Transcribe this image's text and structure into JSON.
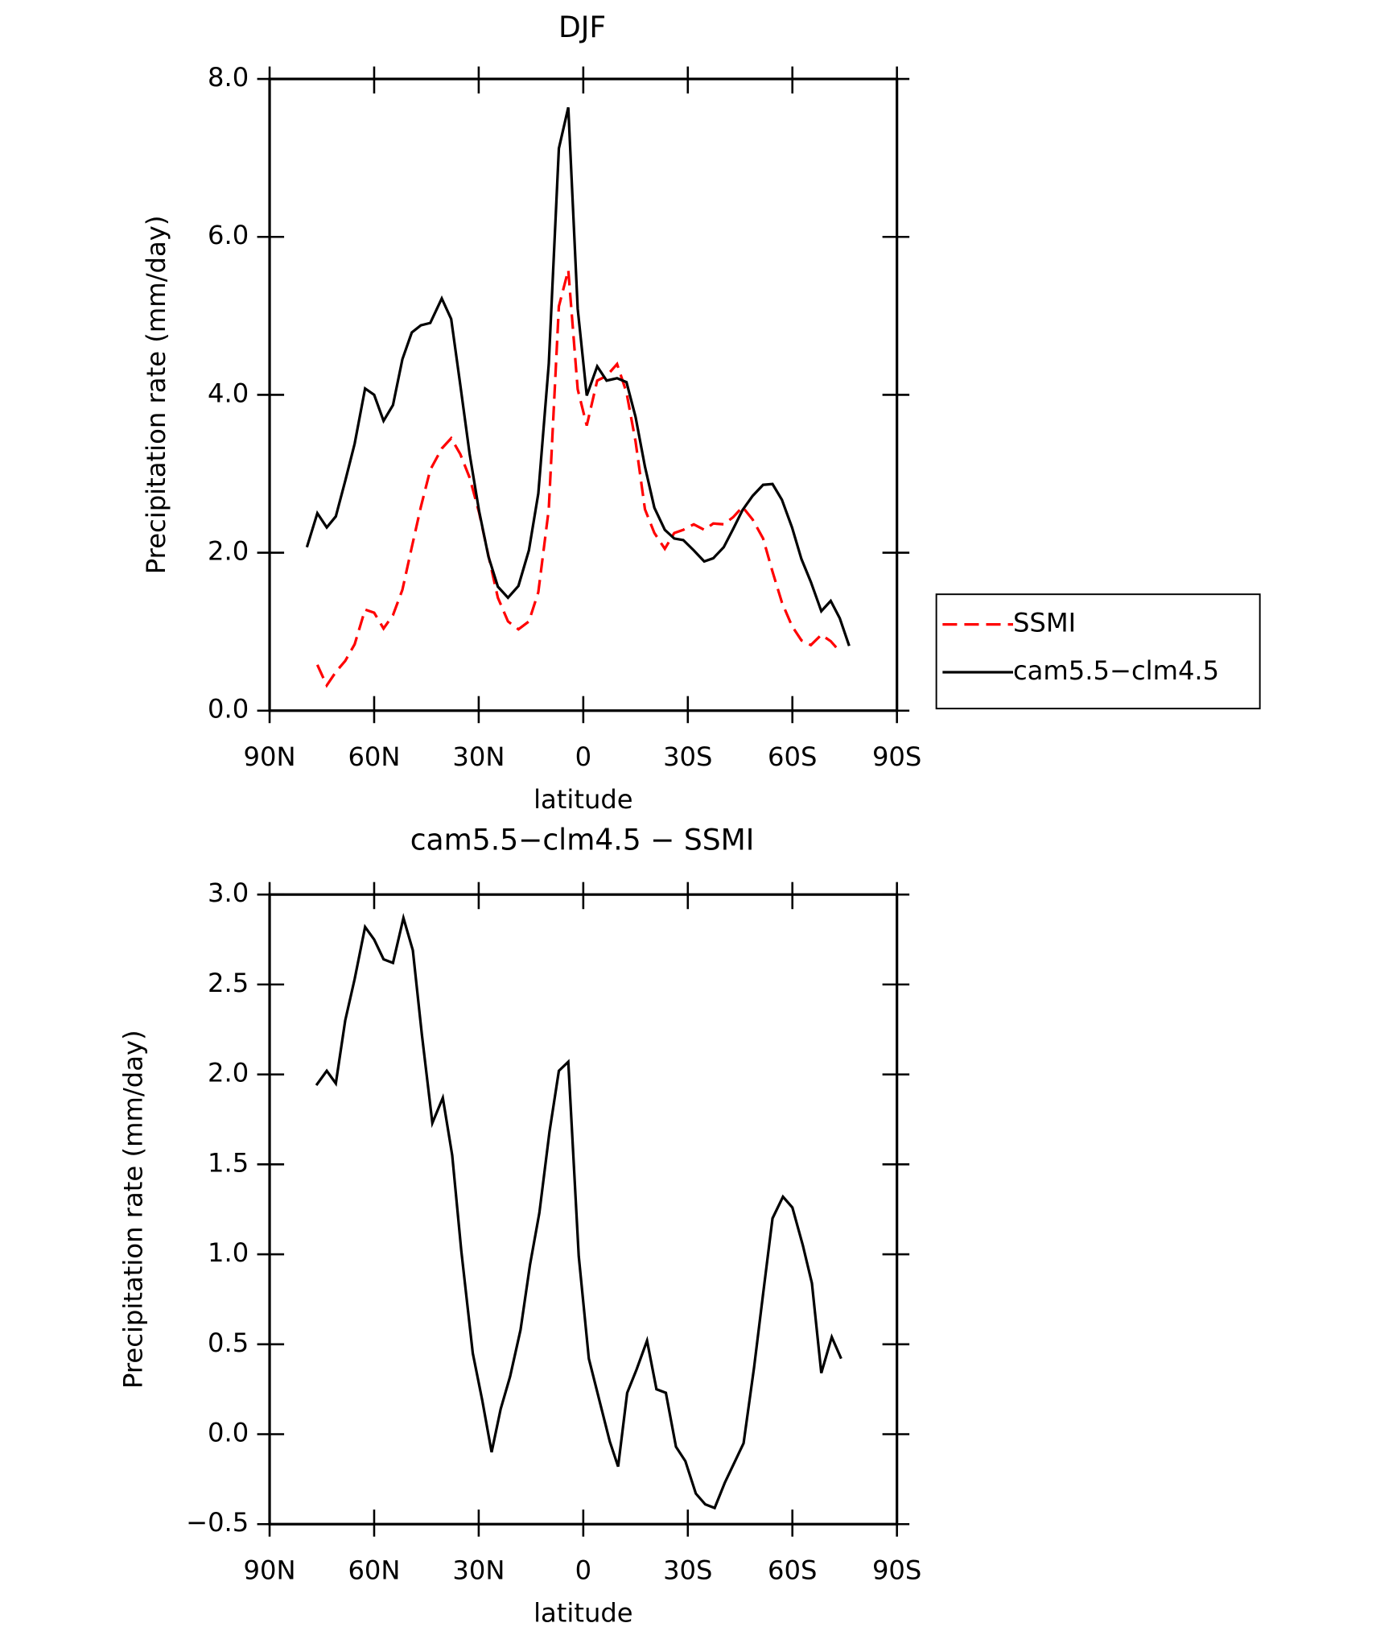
{
  "chart_data": [
    {
      "type": "line",
      "title": "DJF",
      "xlabel": "latitude",
      "ylabel": "Precipitation rate (mm/day)",
      "x": [
        79.3,
        76.3,
        73.6,
        71.0,
        68.3,
        65.6,
        62.6,
        60.0,
        57.3,
        54.6,
        51.9,
        49.2,
        46.6,
        43.9,
        40.6,
        37.9,
        35.3,
        32.6,
        29.9,
        27.2,
        24.5,
        21.6,
        18.6,
        15.6,
        12.9,
        9.9,
        7.0,
        4.3,
        1.6,
        -1.0,
        -4.0,
        -6.7,
        -9.7,
        -12.4,
        -15.0,
        -17.7,
        -20.4,
        -23.4,
        -26.1,
        -28.7,
        -31.7,
        -34.7,
        -37.3,
        -40.3,
        -43.0,
        -45.7,
        -48.6,
        -51.6,
        -54.3,
        -57.0,
        -59.9,
        -62.6,
        -65.3,
        -68.3,
        -71.0,
        -73.6,
        -76.3
      ],
      "series": [
        {
          "name": "SSMI",
          "color": "#ff0000",
          "dash": "dashed",
          "values": [
            null,
            0.58,
            0.32,
            0.49,
            0.63,
            0.84,
            1.28,
            1.24,
            1.04,
            1.21,
            1.53,
            2.07,
            2.58,
            3.05,
            3.32,
            3.45,
            3.25,
            2.95,
            2.51,
            1.96,
            1.43,
            1.13,
            1.03,
            1.13,
            1.5,
            2.55,
            5.12,
            5.58,
            4.07,
            3.61,
            4.18,
            4.24,
            4.39,
            4.03,
            3.41,
            2.55,
            2.25,
            2.05,
            2.25,
            2.29,
            2.36,
            2.29,
            2.37,
            2.36,
            2.45,
            2.58,
            2.42,
            2.18,
            1.76,
            1.37,
            1.07,
            0.89,
            0.83,
            0.96,
            0.88,
            0.75,
            null
          ]
        },
        {
          "name": "cam5.5−clm4.5",
          "color": "#000000",
          "dash": "solid",
          "values": [
            2.07,
            2.5,
            2.32,
            2.46,
            2.91,
            3.38,
            4.08,
            4.0,
            3.67,
            3.87,
            4.45,
            4.79,
            4.88,
            4.91,
            5.22,
            4.96,
            4.13,
            3.25,
            2.53,
            1.95,
            1.57,
            1.43,
            1.58,
            2.03,
            2.75,
            4.39,
            7.12,
            7.64,
            5.09,
            3.99,
            4.36,
            4.18,
            4.21,
            4.16,
            3.72,
            3.09,
            2.57,
            2.29,
            2.18,
            2.16,
            2.03,
            1.89,
            1.93,
            2.07,
            2.3,
            2.54,
            2.72,
            2.86,
            2.87,
            2.67,
            2.32,
            1.92,
            1.63,
            1.26,
            1.39,
            1.17,
            0.82
          ]
        }
      ],
      "xlim": [
        90,
        -90
      ],
      "xticks": [
        {
          "value": 90,
          "label": "90N"
        },
        {
          "value": 60,
          "label": "60N"
        },
        {
          "value": 30,
          "label": "30N"
        },
        0,
        {
          "value": -30,
          "label": "30S"
        },
        {
          "value": -60,
          "label": "60S"
        },
        {
          "value": -90,
          "label": "90S"
        }
      ],
      "ylim": [
        0,
        8
      ],
      "yticks": [
        {
          "value": 0,
          "label": "0.0"
        },
        {
          "value": 2,
          "label": "2.0"
        },
        {
          "value": 4,
          "label": "4.0"
        },
        {
          "value": 6,
          "label": "6.0"
        },
        {
          "value": 8,
          "label": "8.0"
        }
      ],
      "legend": "right"
    },
    {
      "type": "line",
      "title": "cam5.5−clm4.5 − SSMI",
      "xlabel": "latitude",
      "ylabel": "Precipitation rate (mm/day)",
      "x": [
        76.6,
        73.6,
        71.0,
        68.3,
        65.6,
        62.6,
        60.0,
        57.3,
        54.6,
        51.6,
        48.9,
        46.3,
        43.3,
        40.3,
        37.6,
        35.0,
        31.7,
        29.0,
        26.3,
        23.7,
        21.0,
        18.0,
        15.3,
        12.6,
        9.7,
        7.0,
        4.3,
        1.3,
        -1.6,
        -4.6,
        -7.6,
        -10.0,
        -12.6,
        -15.3,
        -18.3,
        -21.0,
        -23.7,
        -26.6,
        -29.3,
        -32.3,
        -35.0,
        -37.7,
        -40.6,
        -43.3,
        -46.0,
        -49.0,
        -51.6,
        -54.3,
        -57.3,
        -60.0,
        -63.0,
        -65.6,
        -68.3,
        -71.3,
        -74.0
      ],
      "values": [
        1.94,
        2.02,
        1.95,
        2.3,
        2.53,
        2.82,
        2.75,
        2.64,
        2.62,
        2.87,
        2.69,
        2.22,
        1.73,
        1.87,
        1.55,
        1.02,
        0.45,
        0.19,
        -0.1,
        0.14,
        0.32,
        0.58,
        0.94,
        1.23,
        1.68,
        2.02,
        2.07,
        0.99,
        0.42,
        0.19,
        -0.04,
        -0.18,
        0.23,
        0.36,
        0.52,
        0.25,
        0.23,
        -0.07,
        -0.15,
        -0.33,
        -0.39,
        -0.41,
        -0.27,
        -0.16,
        -0.05,
        0.37,
        0.78,
        1.2,
        1.32,
        1.26,
        1.05,
        0.84,
        0.34,
        0.54,
        0.42
      ],
      "color": "#000000",
      "xlim": [
        90,
        -90
      ],
      "xticks": [
        {
          "value": 90,
          "label": "90N"
        },
        {
          "value": 60,
          "label": "60N"
        },
        {
          "value": 30,
          "label": "30N"
        },
        0,
        {
          "value": -30,
          "label": "30S"
        },
        {
          "value": -60,
          "label": "60S"
        },
        {
          "value": -90,
          "label": "90S"
        }
      ],
      "ylim": [
        -0.5,
        3
      ],
      "yticks": [
        {
          "value": -0.5,
          "label": "−0.5"
        },
        {
          "value": 0,
          "label": "0.0"
        },
        {
          "value": 0.5,
          "label": "0.5"
        },
        {
          "value": 1,
          "label": "1.0"
        },
        {
          "value": 1.5,
          "label": "1.5"
        },
        {
          "value": 2,
          "label": "2.0"
        },
        {
          "value": 2.5,
          "label": "2.5"
        },
        {
          "value": 3,
          "label": "3.0"
        }
      ]
    }
  ]
}
